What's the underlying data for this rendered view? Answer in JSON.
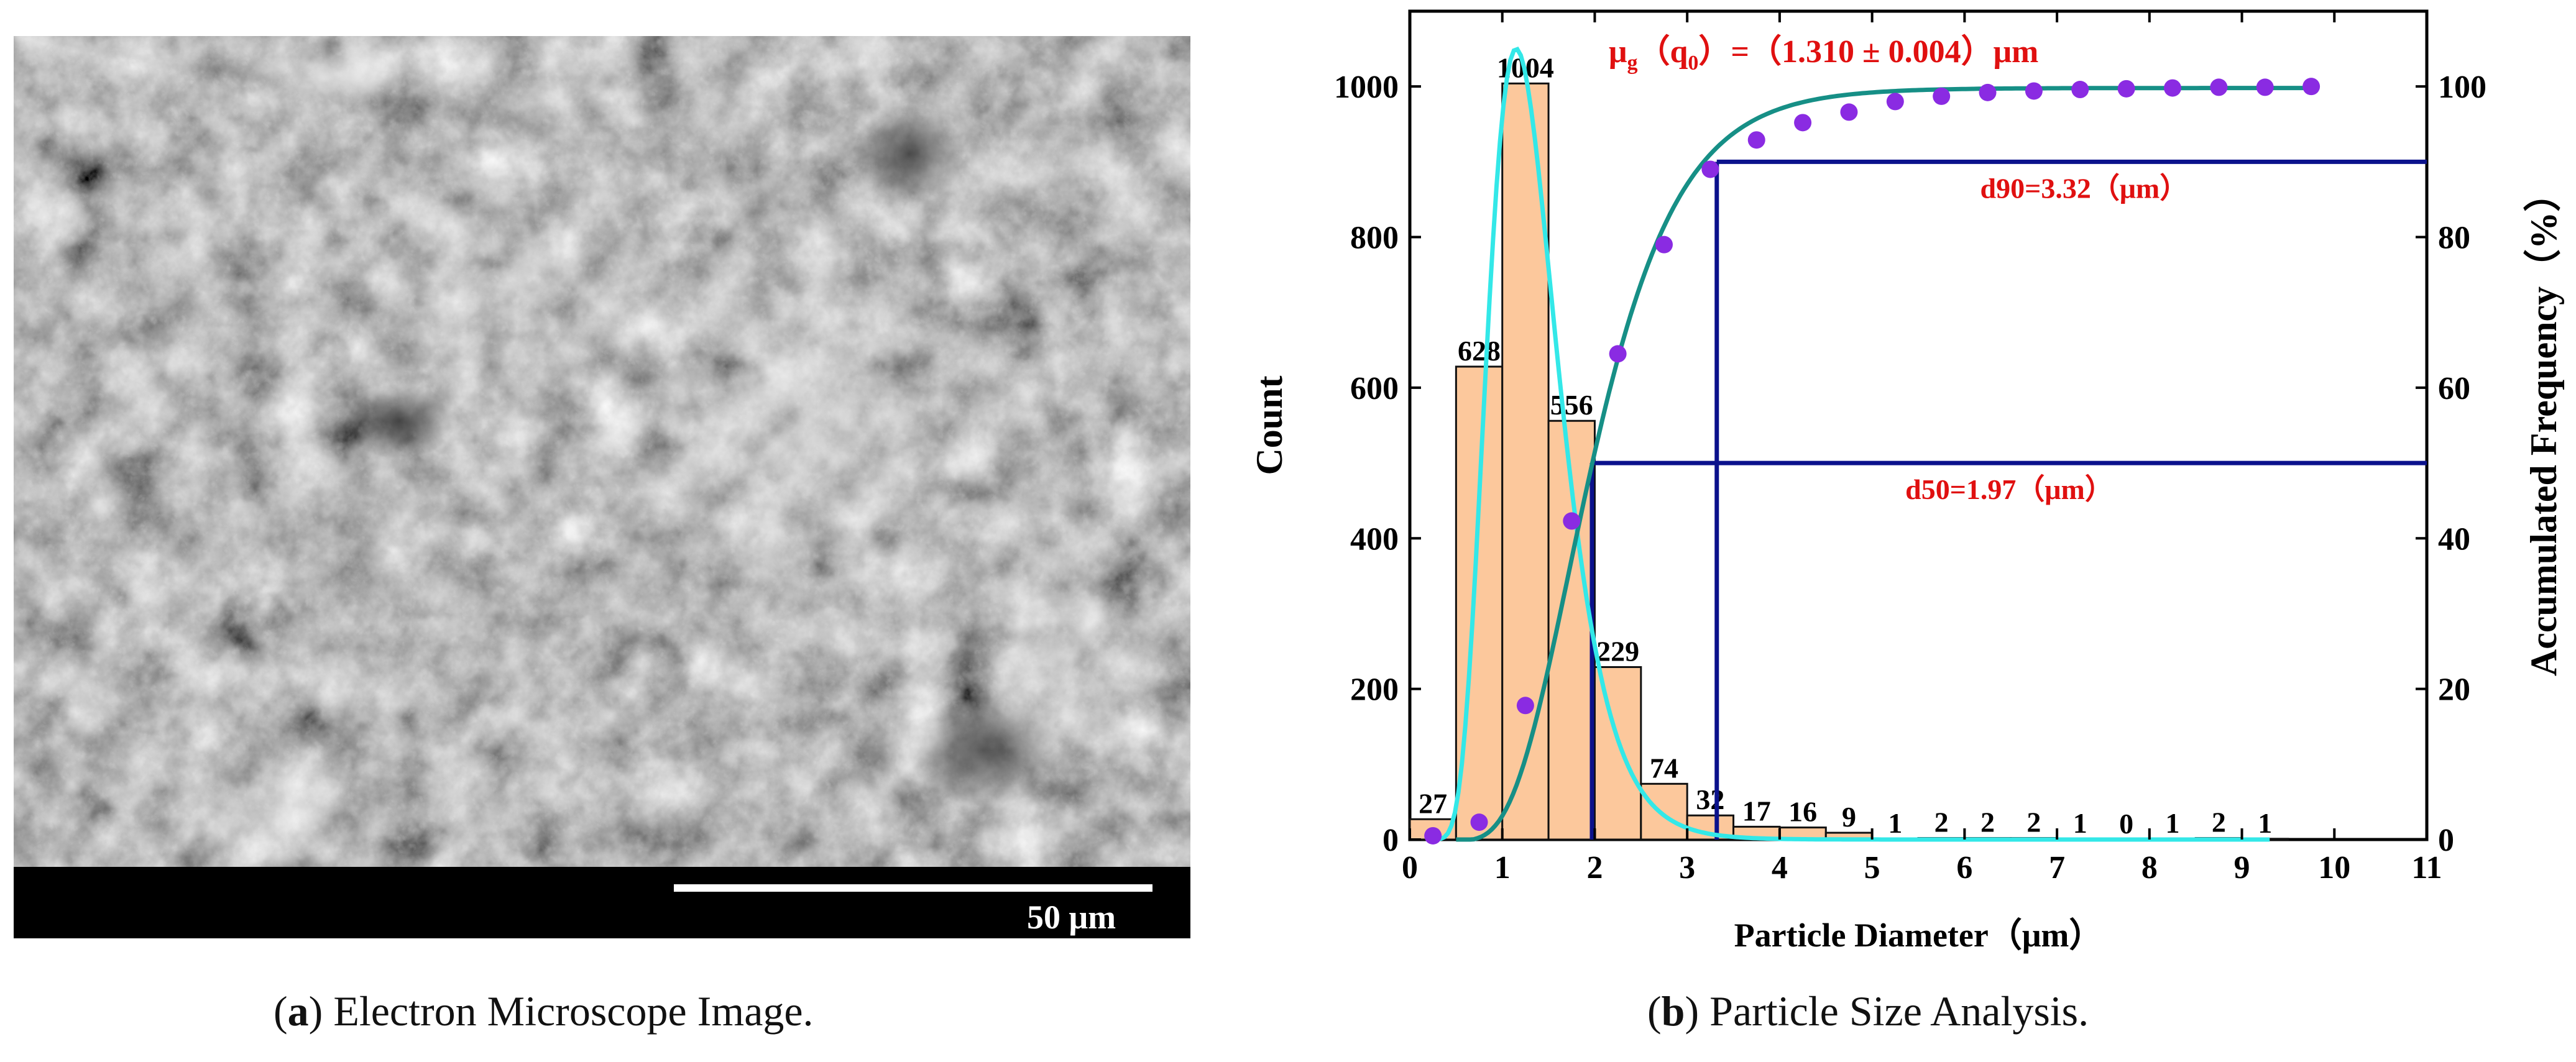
{
  "panel_a": {
    "scale_label": "50 μm",
    "caption_letter": "a",
    "caption_text": " Electron Microscope Image."
  },
  "panel_b": {
    "caption_letter": "b",
    "caption_text": " Particle Size Analysis."
  },
  "chart_data": {
    "type": "bar",
    "xlabel": "Particle Diameter（μm）",
    "ylabel": "Count",
    "y2label": "Accumulated Frequency（%）",
    "xlim": [
      0,
      11
    ],
    "ylim": [
      0,
      1100
    ],
    "y2lim": [
      0,
      110
    ],
    "xticks": [
      0,
      1,
      2,
      3,
      4,
      5,
      6,
      7,
      8,
      9,
      10,
      11
    ],
    "yticks": [
      0,
      200,
      400,
      600,
      800,
      1000
    ],
    "y2ticks": [
      0,
      20,
      40,
      60,
      80,
      100
    ],
    "bar_width": 0.5,
    "bar_color": "#fcc89c",
    "bars": [
      {
        "x": 0.25,
        "value": 27,
        "label": "27"
      },
      {
        "x": 0.75,
        "value": 628,
        "label": "628"
      },
      {
        "x": 1.25,
        "value": 1004,
        "label": "1004"
      },
      {
        "x": 1.75,
        "value": 556,
        "label": "556"
      },
      {
        "x": 2.25,
        "value": 229,
        "label": "229"
      },
      {
        "x": 2.75,
        "value": 74,
        "label": "74"
      },
      {
        "x": 3.25,
        "value": 32,
        "label": "32"
      },
      {
        "x": 3.75,
        "value": 17,
        "label": "17"
      },
      {
        "x": 4.25,
        "value": 16,
        "label": "16"
      },
      {
        "x": 4.75,
        "value": 9,
        "label": "9"
      },
      {
        "x": 5.25,
        "value": 1,
        "label": "1"
      },
      {
        "x": 5.75,
        "value": 2,
        "label": "2"
      },
      {
        "x": 6.25,
        "value": 2,
        "label": "2"
      },
      {
        "x": 6.75,
        "value": 2,
        "label": "2"
      },
      {
        "x": 7.25,
        "value": 1,
        "label": "1"
      },
      {
        "x": 7.75,
        "value": 0,
        "label": "0"
      },
      {
        "x": 8.25,
        "value": 1,
        "label": "1"
      },
      {
        "x": 8.75,
        "value": 2,
        "label": "2"
      },
      {
        "x": 9.25,
        "value": 1,
        "label": "1"
      }
    ],
    "cumulative_points": {
      "color": "#8a2be2",
      "x": [
        0.25,
        0.75,
        1.25,
        1.75,
        2.25,
        2.75,
        3.25,
        3.75,
        4.25,
        4.75,
        5.25,
        5.75,
        6.25,
        6.75,
        7.25,
        7.75,
        8.25,
        8.75,
        9.25,
        9.75
      ],
      "y": [
        0.5,
        2.3,
        17.8,
        42.3,
        64.5,
        79,
        89,
        92.9,
        95.2,
        96.6,
        98,
        98.7,
        99.2,
        99.4,
        99.6,
        99.7,
        99.8,
        99.9,
        99.9,
        100
      ]
    },
    "distribution_fit": {
      "color": "#33e8e8",
      "peak_x": 1.15,
      "peak_count": 1050,
      "log_sigma": 0.33,
      "x_range": [
        0.3,
        9.3
      ]
    },
    "cumulative_fit": {
      "color": "#168f86",
      "center_x": 1.97,
      "log_sigma": 0.37,
      "x_range": [
        0.5,
        9.75
      ]
    },
    "d50": {
      "x": 1.97,
      "y": 50,
      "label": "d50=1.97（μm）"
    },
    "d90": {
      "x": 3.32,
      "y": 90,
      "label": "d90=3.32（μm）"
    },
    "reference_color": "#0b128c",
    "annotation": {
      "main": "μ",
      "sub_g": "g",
      "part2": "（q",
      "sub_0": "0",
      "part3": "）=（1.310 ± 0.004）μm",
      "color": "#e01010"
    }
  }
}
